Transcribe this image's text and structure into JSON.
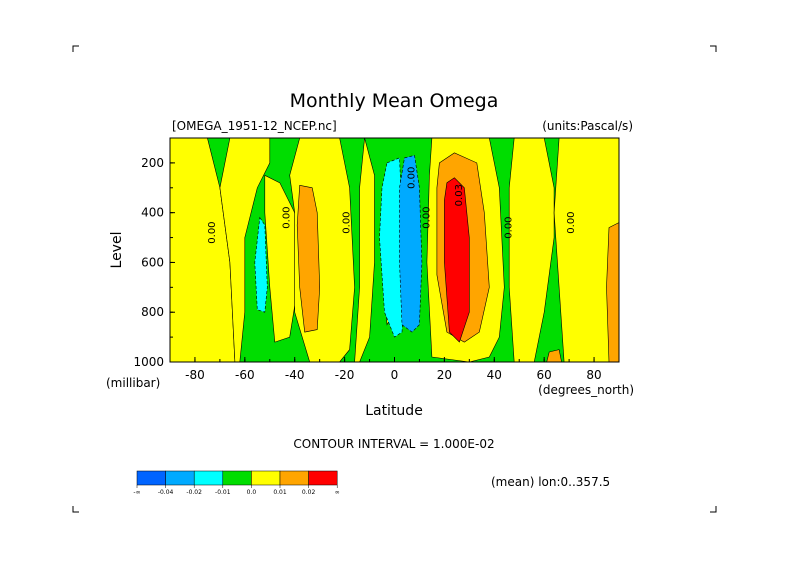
{
  "chart_data": {
    "type": "heatmap",
    "title": "Monthly Mean Omega",
    "source_file": "[OMEGA_1951-12_NCEP.nc]",
    "units": "(units:Pascal/s)",
    "xlabel": "Latitude",
    "ylabel": "Level",
    "x_unit_label": "(degrees_north)",
    "y_unit_label": "(millibar)",
    "xlim": [
      -90,
      90
    ],
    "ylim": [
      1000,
      100
    ],
    "x_ticks": [
      -80,
      -60,
      -40,
      -20,
      0,
      20,
      40,
      60,
      80
    ],
    "x_tick_labels": [
      "-80",
      "-60",
      "-40",
      "-20",
      "0",
      "20",
      "40",
      "60",
      "80"
    ],
    "y_ticks": [
      200,
      400,
      600,
      800,
      1000
    ],
    "y_tick_labels": [
      "200",
      "400",
      "600",
      "800",
      "1000"
    ],
    "contour_interval_label": "CONTOUR INTERVAL = 1.000E-02",
    "mean_label": "(mean) lon:0..357.5",
    "contour_labels": [
      {
        "text": "0.00",
        "x": -72,
        "y": 480
      },
      {
        "text": "0.00",
        "x": -42,
        "y": 420
      },
      {
        "text": "0.00",
        "x": -18,
        "y": 440
      },
      {
        "text": "0.00",
        "x": 8,
        "y": 260
      },
      {
        "text": "0.00",
        "x": 14,
        "y": 420
      },
      {
        "text": "0.00",
        "x": 47,
        "y": 460
      },
      {
        "text": "0.00",
        "x": 72,
        "y": 440
      },
      {
        "text": "0.03",
        "x": 27,
        "y": 330
      }
    ],
    "legend": {
      "colors": [
        "#0064ff",
        "#00aaff",
        "#00ffff",
        "#00dd00",
        "#ffff00",
        "#ffa500",
        "#ff0000"
      ],
      "labels": [
        "-∞",
        "-0.04",
        "-0.02",
        "-0.01",
        "0.0",
        "0.01",
        "0.02",
        "∞"
      ]
    },
    "background_color": "#00dd00",
    "regions": [
      {
        "level": 0.005,
        "color": "#ffff00",
        "points": [
          [
            -90,
            100
          ],
          [
            -75,
            100
          ],
          [
            -70,
            300
          ],
          [
            -66,
            600
          ],
          [
            -64,
            1000
          ],
          [
            -90,
            1000
          ]
        ]
      },
      {
        "level": 0.005,
        "color": "#ffff00",
        "points": [
          [
            -66,
            100
          ],
          [
            -50,
            100
          ],
          [
            -50,
            200
          ],
          [
            -55,
            300
          ],
          [
            -60,
            500
          ],
          [
            -60,
            800
          ],
          [
            -62,
            1000
          ],
          [
            -64,
            1000
          ],
          [
            -66,
            600
          ],
          [
            -70,
            300
          ]
        ]
      },
      {
        "level": 0.005,
        "color": "#ffff00",
        "points": [
          [
            -52,
            250
          ],
          [
            -46,
            280
          ],
          [
            -40,
            400
          ],
          [
            -38,
            650
          ],
          [
            -42,
            900
          ],
          [
            -48,
            920
          ],
          [
            -50,
            700
          ],
          [
            -52,
            400
          ]
        ]
      },
      {
        "level": 0.005,
        "color": "#ffff00",
        "points": [
          [
            -38,
            100
          ],
          [
            -22,
            100
          ],
          [
            -18,
            300
          ],
          [
            -16,
            700
          ],
          [
            -18,
            950
          ],
          [
            -22,
            1000
          ],
          [
            -34,
            1000
          ],
          [
            -40,
            800
          ],
          [
            -40,
            400
          ],
          [
            -42,
            250
          ]
        ]
      },
      {
        "level": 0.005,
        "color": "#ffff00",
        "points": [
          [
            -12,
            100
          ],
          [
            -8,
            250
          ],
          [
            -8,
            600
          ],
          [
            -10,
            900
          ],
          [
            -14,
            1000
          ],
          [
            -16,
            1000
          ],
          [
            -14,
            700
          ],
          [
            -14,
            300
          ]
        ]
      },
      {
        "level": 0.005,
        "color": "#ffff00",
        "points": [
          [
            -4,
            250
          ],
          [
            -1,
            300
          ],
          [
            0,
            600
          ],
          [
            0,
            800
          ],
          [
            -3,
            850
          ],
          [
            -5,
            600
          ]
        ]
      },
      {
        "level": 0.005,
        "color": "#ffff00",
        "points": [
          [
            15,
            100
          ],
          [
            38,
            100
          ],
          [
            42,
            300
          ],
          [
            44,
            700
          ],
          [
            42,
            900
          ],
          [
            38,
            980
          ],
          [
            30,
            1000
          ],
          [
            15,
            980
          ],
          [
            13,
            600
          ],
          [
            14,
            250
          ]
        ]
      },
      {
        "level": 0.005,
        "color": "#ffff00",
        "points": [
          [
            48,
            100
          ],
          [
            60,
            100
          ],
          [
            64,
            300
          ],
          [
            64,
            500
          ],
          [
            60,
            800
          ],
          [
            56,
            1000
          ],
          [
            48,
            1000
          ],
          [
            46,
            700
          ],
          [
            46,
            300
          ]
        ]
      },
      {
        "level": 0.005,
        "color": "#ffff00",
        "points": [
          [
            66,
            100
          ],
          [
            90,
            100
          ],
          [
            90,
            1000
          ],
          [
            68,
            1000
          ],
          [
            66,
            700
          ],
          [
            64,
            400
          ]
        ]
      },
      {
        "level": 0.015,
        "color": "#ffa500",
        "points": [
          [
            -38,
            290
          ],
          [
            -33,
            300
          ],
          [
            -31,
            400
          ],
          [
            -30,
            700
          ],
          [
            -31,
            870
          ],
          [
            -36,
            880
          ],
          [
            -38,
            700
          ],
          [
            -39,
            450
          ]
        ]
      },
      {
        "level": 0.015,
        "color": "#ffa500",
        "points": [
          [
            18,
            200
          ],
          [
            24,
            160
          ],
          [
            33,
            200
          ],
          [
            36,
            400
          ],
          [
            38,
            700
          ],
          [
            34,
            880
          ],
          [
            28,
            920
          ],
          [
            21,
            880
          ],
          [
            17,
            650
          ],
          [
            17,
            300
          ]
        ]
      },
      {
        "level": 0.015,
        "color": "#ffa500",
        "points": [
          [
            86,
            460
          ],
          [
            90,
            440
          ],
          [
            90,
            1000
          ],
          [
            86,
            1000
          ],
          [
            85,
            700
          ]
        ]
      },
      {
        "level": 0.015,
        "color": "#ffa500",
        "points": [
          [
            62,
            960
          ],
          [
            66,
            950
          ],
          [
            67,
            1000
          ],
          [
            61,
            1000
          ]
        ]
      },
      {
        "level": 0.025,
        "color": "#ff0000",
        "points": [
          [
            21,
            280
          ],
          [
            24,
            260
          ],
          [
            28,
            300
          ],
          [
            30,
            500
          ],
          [
            30,
            800
          ],
          [
            26,
            920
          ],
          [
            22,
            880
          ],
          [
            20,
            600
          ],
          [
            20,
            350
          ]
        ]
      },
      {
        "level": -0.005,
        "color": "#00ffff",
        "points": [
          [
            -3,
            200
          ],
          [
            2,
            180
          ],
          [
            3,
            400
          ],
          [
            4,
            700
          ],
          [
            3,
            880
          ],
          [
            0,
            900
          ],
          [
            -4,
            800
          ],
          [
            -6,
            500
          ],
          [
            -5,
            300
          ]
        ]
      },
      {
        "level": -0.005,
        "color": "#00ffff",
        "points": [
          [
            -54,
            420
          ],
          [
            -52,
            450
          ],
          [
            -51,
            700
          ],
          [
            -52,
            800
          ],
          [
            -55,
            790
          ],
          [
            -56,
            600
          ]
        ]
      },
      {
        "level": -0.015,
        "color": "#00aaff",
        "points": [
          [
            4,
            180
          ],
          [
            8,
            170
          ],
          [
            10,
            300
          ],
          [
            11,
            600
          ],
          [
            10,
            850
          ],
          [
            7,
            880
          ],
          [
            3,
            850
          ],
          [
            2,
            600
          ],
          [
            2,
            300
          ]
        ]
      }
    ]
  }
}
